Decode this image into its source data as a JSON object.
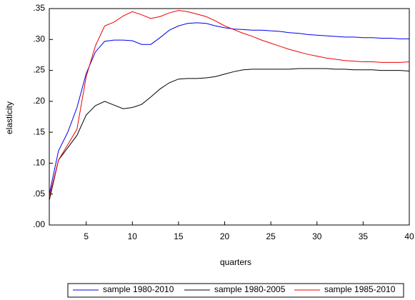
{
  "chart_data": {
    "type": "line",
    "xlabel": "quarters",
    "ylabel": "elasticity",
    "x": [
      1,
      2,
      3,
      4,
      5,
      6,
      7,
      8,
      9,
      10,
      11,
      12,
      13,
      14,
      15,
      16,
      17,
      18,
      19,
      20,
      21,
      22,
      23,
      24,
      25,
      26,
      27,
      28,
      29,
      30,
      31,
      32,
      33,
      34,
      35,
      36,
      37,
      38,
      39,
      40
    ],
    "xlim": [
      1,
      40
    ],
    "xticks": [
      5,
      10,
      15,
      20,
      25,
      30,
      35,
      40
    ],
    "ylim": [
      0,
      0.35
    ],
    "yticks": [
      {
        "value": 0,
        "label": ".00"
      },
      {
        "value": 0.05,
        "label": ".05"
      },
      {
        "value": 0.1,
        "label": ".10"
      },
      {
        "value": 0.15,
        "label": ".15"
      },
      {
        "value": 0.2,
        "label": ".20"
      },
      {
        "value": 0.25,
        "label": ".25"
      },
      {
        "value": 0.3,
        "label": ".30"
      },
      {
        "value": 0.35,
        "label": ".35"
      }
    ],
    "legend": "bottom",
    "series": [
      {
        "name": "sample 1980-2010",
        "color": "#0000ee",
        "values": [
          0.05,
          0.12,
          0.15,
          0.19,
          0.245,
          0.28,
          0.297,
          0.299,
          0.299,
          0.298,
          0.292,
          0.292,
          0.303,
          0.315,
          0.322,
          0.326,
          0.327,
          0.326,
          0.322,
          0.319,
          0.317,
          0.316,
          0.315,
          0.315,
          0.314,
          0.313,
          0.311,
          0.31,
          0.308,
          0.307,
          0.306,
          0.305,
          0.304,
          0.304,
          0.303,
          0.303,
          0.302,
          0.302,
          0.301,
          0.301
        ]
      },
      {
        "name": "sample 1980-2005",
        "color": "#000000",
        "values": [
          0.04,
          0.105,
          0.125,
          0.145,
          0.178,
          0.193,
          0.2,
          0.194,
          0.188,
          0.19,
          0.195,
          0.207,
          0.22,
          0.23,
          0.236,
          0.237,
          0.237,
          0.238,
          0.24,
          0.244,
          0.248,
          0.251,
          0.252,
          0.252,
          0.252,
          0.252,
          0.252,
          0.253,
          0.253,
          0.253,
          0.253,
          0.252,
          0.252,
          0.251,
          0.251,
          0.251,
          0.25,
          0.25,
          0.25,
          0.249
        ]
      },
      {
        "name": "sample 1985-2010",
        "color": "#ee0000",
        "values": [
          0.045,
          0.105,
          0.13,
          0.155,
          0.24,
          0.29,
          0.322,
          0.328,
          0.338,
          0.345,
          0.34,
          0.334,
          0.337,
          0.343,
          0.347,
          0.345,
          0.341,
          0.337,
          0.33,
          0.322,
          0.316,
          0.31,
          0.305,
          0.299,
          0.294,
          0.289,
          0.284,
          0.28,
          0.276,
          0.273,
          0.27,
          0.268,
          0.266,
          0.265,
          0.264,
          0.264,
          0.263,
          0.263,
          0.263,
          0.264
        ]
      }
    ]
  }
}
